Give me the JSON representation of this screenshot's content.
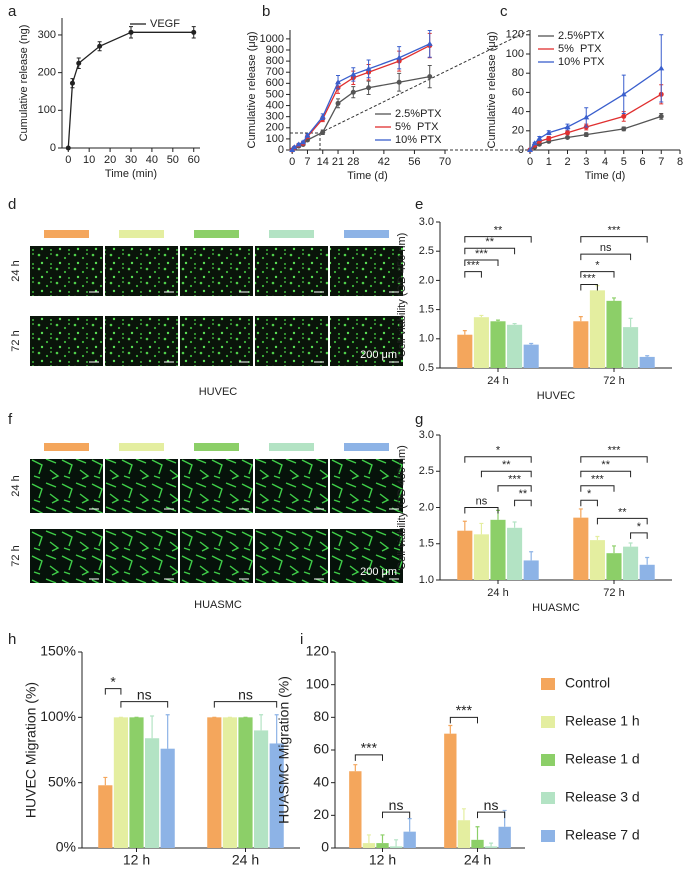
{
  "panel_labels": [
    "a",
    "b",
    "c",
    "d",
    "e",
    "f",
    "g",
    "h",
    "i"
  ],
  "micrographs": {
    "d": {
      "rows": [
        "24 h",
        "72 h"
      ],
      "cell": "HUVEC",
      "scale": "200 μm"
    },
    "f": {
      "rows": [
        "24 h",
        "72 h"
      ],
      "cell": "HUASMC",
      "scale": "200 μm"
    }
  },
  "chart_data": [
    {
      "type": "line",
      "x_label": "Time (min)",
      "y_label": "Cumulative release (ng)",
      "x": [
        0,
        2,
        5,
        15,
        30,
        60
      ],
      "xlim": [
        -3,
        63
      ],
      "xticks": [
        0,
        10,
        20,
        30,
        40,
        50,
        60
      ],
      "ylim": [
        0,
        345
      ],
      "yticks": [
        0,
        100,
        200,
        300
      ],
      "legend": "upper right",
      "series": [
        {
          "name": "VEGF",
          "color": "#222222",
          "values": [
            0,
            172,
            225,
            270,
            307,
            307
          ],
          "errors": [
            0,
            12,
            14,
            12,
            15,
            15
          ]
        }
      ]
    },
    {
      "type": "line",
      "x_label": "Time (d)",
      "y_label": "Cumulative release (μg)",
      "x": [
        0,
        1,
        3,
        5,
        7,
        14,
        21,
        28,
        35,
        49,
        63
      ],
      "xlim": [
        -1,
        70
      ],
      "xticks": [
        0,
        7,
        14,
        21,
        28,
        42,
        56,
        70
      ],
      "ylim": [
        0,
        1080
      ],
      "yticks": [
        0,
        100,
        200,
        300,
        400,
        500,
        600,
        700,
        800,
        900,
        1000
      ],
      "legend": "lower right",
      "series": [
        {
          "name": "2.5%PTX",
          "color": "#555555",
          "values": [
            0,
            15,
            35,
            50,
            90,
            160,
            420,
            520,
            560,
            610,
            660
          ],
          "errors": [
            0,
            5,
            8,
            10,
            12,
            20,
            40,
            50,
            60,
            80,
            100
          ]
        },
        {
          "name": "5%  PTX",
          "color": "#e03030",
          "values": [
            0,
            20,
            45,
            60,
            120,
            280,
            560,
            650,
            700,
            800,
            940
          ],
          "errors": [
            0,
            5,
            8,
            10,
            15,
            25,
            50,
            60,
            70,
            90,
            110
          ]
        },
        {
          "name": "10% PTX",
          "color": "#3a5fcd",
          "values": [
            0,
            25,
            50,
            70,
            130,
            300,
            610,
            680,
            730,
            830,
            955
          ],
          "errors": [
            0,
            6,
            8,
            10,
            15,
            25,
            60,
            60,
            80,
            100,
            120
          ]
        }
      ]
    },
    {
      "type": "line",
      "x_label": "Time (d)",
      "y_label": "Cumulative release (μg)",
      "x": [
        0,
        0.25,
        0.5,
        1,
        2,
        3,
        5,
        7
      ],
      "xlim": [
        0,
        8
      ],
      "xticks": [
        0,
        1,
        2,
        3,
        4,
        5,
        6,
        7,
        8
      ],
      "ylim": [
        0,
        125
      ],
      "yticks": [
        0,
        20,
        40,
        60,
        80,
        100,
        120
      ],
      "legend": "upper left",
      "series": [
        {
          "name": "2.5%PTX",
          "color": "#555555",
          "values": [
            0,
            3,
            6,
            9,
            13,
            16,
            22,
            35
          ],
          "errors": [
            0,
            1,
            1,
            1,
            1,
            2,
            2,
            3
          ]
        },
        {
          "name": "5%  PTX",
          "color": "#e03030",
          "values": [
            0,
            5,
            9,
            12,
            18,
            24,
            35,
            58
          ],
          "errors": [
            0,
            1,
            1,
            2,
            2,
            3,
            5,
            10
          ]
        },
        {
          "name": "10% PTX",
          "color": "#3a5fcd",
          "values": [
            0,
            7,
            12,
            18,
            24,
            34,
            58,
            85
          ],
          "errors": [
            0,
            1,
            2,
            2,
            3,
            10,
            20,
            35
          ]
        }
      ]
    },
    {
      "type": "bar",
      "x_label": "HUVEC",
      "y_label": "Cell viability (OD 450 nm)",
      "categories": [
        "24 h",
        "72 h"
      ],
      "ylim": [
        0.5,
        3
      ],
      "yticks": [
        0.5,
        {
          "value": 1,
          "label": "1.0"
        },
        1.5,
        {
          "value": 2,
          "label": "2.0"
        },
        2.5,
        {
          "value": 3,
          "label": "3.0"
        }
      ],
      "annotations": [
        "**",
        "**",
        "***",
        "***",
        "***",
        "ns",
        "*",
        "***"
      ],
      "series": [
        {
          "color": "#f4a65c",
          "values": [
            1.07,
            1.3
          ],
          "errors": [
            0.07,
            0.08
          ]
        },
        {
          "color": "#e4eea0",
          "values": [
            1.37,
            1.83
          ],
          "errors": [
            0.03,
            0.08
          ]
        },
        {
          "color": "#8ccf68",
          "values": [
            1.3,
            1.65
          ],
          "errors": [
            0.02,
            0.05
          ]
        },
        {
          "color": "#b3e3c4",
          "values": [
            1.24,
            1.2
          ],
          "errors": [
            0.02,
            0.15
          ]
        },
        {
          "color": "#8db3e6",
          "values": [
            0.9,
            0.69
          ],
          "errors": [
            0.02,
            0.02
          ]
        }
      ]
    },
    {
      "type": "bar",
      "x_label": "HUASMC",
      "y_label": "Cell viability (OD 450 nm)",
      "categories": [
        "24 h",
        "72 h"
      ],
      "ylim": [
        1,
        3
      ],
      "yticks": [
        {
          "value": 1,
          "label": "1.0"
        },
        1.5,
        {
          "value": 2,
          "label": "2.0"
        },
        2.5,
        {
          "value": 3,
          "label": "3.0"
        }
      ],
      "annotations": [
        "*",
        "**",
        "***",
        "**",
        "ns",
        "***",
        "**",
        "***",
        "*",
        "**",
        "*"
      ],
      "series": [
        {
          "color": "#f4a65c",
          "values": [
            1.68,
            1.86
          ],
          "errors": [
            0.13,
            0.12
          ]
        },
        {
          "color": "#e4eea0",
          "values": [
            1.63,
            1.55
          ],
          "errors": [
            0.15,
            0.05
          ]
        },
        {
          "color": "#8ccf68",
          "values": [
            1.83,
            1.37
          ],
          "errors": [
            0.13,
            0.1
          ]
        },
        {
          "color": "#b3e3c4",
          "values": [
            1.72,
            1.46
          ],
          "errors": [
            0.08,
            0.05
          ]
        },
        {
          "color": "#8db3e6",
          "values": [
            1.27,
            1.21
          ],
          "errors": [
            0.12,
            0.1
          ]
        }
      ]
    },
    {
      "type": "bar",
      "y_label": "HUVEC Migration (%)",
      "categories": [
        "12 h",
        "24 h"
      ],
      "ylim": [
        0,
        150
      ],
      "yticks": [
        {
          "value": 0,
          "label": "0%"
        },
        {
          "value": 50,
          "label": "50%"
        },
        {
          "value": 100,
          "label": "100%"
        },
        {
          "value": 150,
          "label": "150%"
        }
      ],
      "annotations": [
        "*",
        "ns",
        "ns"
      ],
      "series": [
        {
          "color": "#f4a65c",
          "values": [
            48,
            100
          ],
          "errors": [
            6,
            0
          ]
        },
        {
          "color": "#e4eea0",
          "values": [
            100,
            100
          ],
          "errors": [
            0,
            0
          ]
        },
        {
          "color": "#8ccf68",
          "values": [
            100,
            100
          ],
          "errors": [
            0,
            0
          ]
        },
        {
          "color": "#b3e3c4",
          "values": [
            84,
            90
          ],
          "errors": [
            17,
            12
          ]
        },
        {
          "color": "#8db3e6",
          "values": [
            76,
            80
          ],
          "errors": [
            26,
            22
          ]
        }
      ]
    },
    {
      "type": "bar",
      "y_label": "HUASMC Migration (%)",
      "categories": [
        "12 h",
        "24 h"
      ],
      "ylim": [
        0,
        120
      ],
      "yticks": [
        0,
        20,
        40,
        60,
        80,
        100,
        120
      ],
      "annotations": [
        "***",
        "ns",
        "***",
        "ns"
      ],
      "legend": "right",
      "series": [
        {
          "name": "Control",
          "color": "#f4a65c",
          "values": [
            47,
            70
          ],
          "errors": [
            4,
            5
          ]
        },
        {
          "name": "Release 1 h",
          "color": "#e4eea0",
          "values": [
            3,
            17
          ],
          "errors": [
            5,
            7
          ]
        },
        {
          "name": "Release 1 d",
          "color": "#8ccf68",
          "values": [
            3,
            5
          ],
          "errors": [
            5,
            8
          ]
        },
        {
          "name": "Release 3 d",
          "color": "#b3e3c4",
          "values": [
            1,
            1
          ],
          "errors": [
            4,
            2
          ]
        },
        {
          "name": "Release 7 d",
          "color": "#8db3e6",
          "values": [
            10,
            13
          ],
          "errors": [
            8,
            10
          ]
        }
      ]
    }
  ]
}
